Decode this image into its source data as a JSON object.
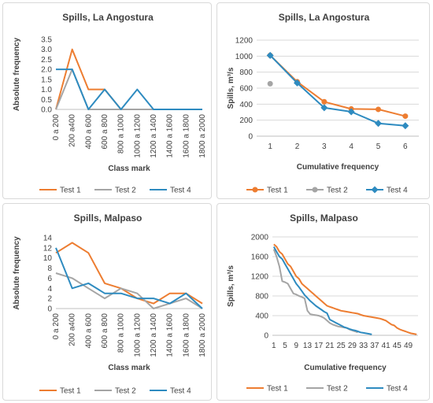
{
  "colors": {
    "test1": "#ED7D31",
    "test2": "#A5A5A5",
    "test4": "#2E8BC0",
    "grid": "#D9D9D9",
    "axis": "#BFBFBF",
    "text": "#404040"
  },
  "chart_data": [
    {
      "type": "line",
      "title": "Spills, La Angostura",
      "xlabel": "Class mark",
      "ylabel": "Absolute frequency",
      "categories": [
        "0 a 200",
        "200 a400",
        "400 a 600",
        "600 a 800",
        "800 a 1000",
        "1000 a 1200",
        "1200 a 1400",
        "1400 a 1600",
        "1600 a 1800",
        "1800 a 2000"
      ],
      "ylim": [
        0,
        3.5
      ],
      "yticks": [
        "0.0",
        "0.5",
        "1.0",
        "1.5",
        "2.0",
        "2.5",
        "3.0",
        "3.5"
      ],
      "grid": false,
      "legend": "bottom",
      "series": [
        {
          "name": "Test 1",
          "color": "#ED7D31",
          "marker": "none",
          "values": [
            0,
            3,
            1,
            1,
            0,
            0,
            0,
            0,
            0,
            0
          ]
        },
        {
          "name": "Test 2",
          "color": "#A5A5A5",
          "marker": "none",
          "values": [
            0,
            2,
            0,
            0,
            0,
            0,
            0,
            0,
            0,
            0
          ]
        },
        {
          "name": "Test 4",
          "color": "#2E8BC0",
          "marker": "none",
          "values": [
            2,
            2,
            0,
            1,
            0,
            1,
            0,
            0,
            0,
            0
          ]
        }
      ]
    },
    {
      "type": "line",
      "title": "Spills, La Angostura",
      "xlabel": "Cumulative frequency",
      "ylabel": "Spills, m³/s",
      "x": [
        1,
        2,
        3,
        4,
        5,
        6
      ],
      "xticks": [
        "1",
        "2",
        "3",
        "4",
        "5",
        "6"
      ],
      "xlim": [
        0.5,
        6.5
      ],
      "ylim": [
        0,
        1200
      ],
      "yticks": [
        "0",
        "200",
        "400",
        "600",
        "800",
        "1000",
        "1200"
      ],
      "grid": true,
      "legend": "bottom",
      "series": [
        {
          "name": "Test 1",
          "color": "#ED7D31",
          "marker": "circle",
          "x": [
            1,
            2,
            3,
            4,
            5,
            6
          ],
          "y": [
            1010,
            680,
            430,
            340,
            335,
            250
          ]
        },
        {
          "name": "Test 2",
          "color": "#A5A5A5",
          "marker": "circle",
          "x": [
            1
          ],
          "y": [
            655
          ]
        },
        {
          "name": "Test 4",
          "color": "#2E8BC0",
          "marker": "diamond",
          "x": [
            1,
            2,
            3,
            4,
            5,
            6
          ],
          "y": [
            1010,
            665,
            355,
            305,
            160,
            130
          ]
        }
      ]
    },
    {
      "type": "line",
      "title": "Spills, Malpaso",
      "xlabel": "Class mark",
      "ylabel": "Absolute frequency",
      "categories": [
        "0 a 200",
        "200 a400",
        "400 a 600",
        "600 a 800",
        "800 a 1000",
        "1000 a 1200",
        "1200 a 1400",
        "1400 a 1600",
        "1600 a 1800",
        "1800 a 2000"
      ],
      "ylim": [
        0,
        14
      ],
      "yticks": [
        "0",
        "2",
        "4",
        "6",
        "8",
        "10",
        "12",
        "14"
      ],
      "grid": false,
      "legend": "bottom",
      "series": [
        {
          "name": "Test 1",
          "color": "#ED7D31",
          "marker": "none",
          "values": [
            11,
            13,
            11,
            5,
            4,
            2,
            1,
            3,
            3,
            1
          ]
        },
        {
          "name": "Test 2",
          "color": "#A5A5A5",
          "marker": "none",
          "values": [
            7,
            6,
            4,
            2,
            4,
            3,
            0,
            1,
            2,
            0
          ]
        },
        {
          "name": "Test 4",
          "color": "#2E8BC0",
          "marker": "none",
          "values": [
            12,
            4,
            5,
            3,
            3,
            2,
            2,
            1,
            3,
            0
          ]
        }
      ]
    },
    {
      "type": "line",
      "title": "Spills, Malpaso",
      "xlabel": "Cumulative frequency",
      "ylabel": "Spills, m³/s",
      "xlim": [
        0.5,
        52.5
      ],
      "xticks": [
        "1",
        "5",
        "9",
        "13",
        "17",
        "21",
        "25",
        "29",
        "33",
        "37",
        "41",
        "45",
        "49"
      ],
      "xtick_positions": [
        1,
        5,
        9,
        13,
        17,
        21,
        25,
        29,
        33,
        37,
        41,
        45,
        49
      ],
      "ylim": [
        0,
        2000
      ],
      "yticks": [
        "0",
        "400",
        "800",
        "1200",
        "1600",
        "2000"
      ],
      "grid": true,
      "legend": "bottom",
      "series": [
        {
          "name": "Test 1",
          "color": "#ED7D31",
          "marker": "none",
          "x": [
            1,
            2,
            3,
            4,
            5,
            6,
            7,
            8,
            9,
            10,
            11,
            12,
            13,
            14,
            15,
            16,
            17,
            18,
            19,
            20,
            21,
            22,
            23,
            24,
            25,
            26,
            27,
            28,
            29,
            30,
            31,
            32,
            33,
            34,
            35,
            36,
            37,
            38,
            39,
            40,
            41,
            42,
            43,
            44,
            45,
            46,
            47,
            48,
            49,
            50,
            51,
            52
          ],
          "y": [
            1850,
            1800,
            1700,
            1650,
            1550,
            1450,
            1400,
            1300,
            1200,
            1150,
            1050,
            1000,
            950,
            900,
            850,
            800,
            750,
            700,
            650,
            600,
            580,
            560,
            540,
            520,
            500,
            490,
            480,
            470,
            460,
            450,
            440,
            420,
            400,
            390,
            380,
            370,
            360,
            350,
            340,
            320,
            300,
            260,
            220,
            200,
            150,
            120,
            100,
            80,
            60,
            40,
            30,
            20
          ]
        },
        {
          "name": "Test 2",
          "color": "#A5A5A5",
          "marker": "none",
          "x": [
            1,
            2,
            3,
            4,
            5,
            6,
            7,
            8,
            9,
            10,
            11,
            12,
            13,
            14,
            15,
            16,
            17,
            18,
            19,
            20,
            21,
            22,
            23,
            24,
            25,
            26,
            27,
            28,
            29,
            30,
            31
          ],
          "y": [
            1750,
            1600,
            1400,
            1100,
            1080,
            1050,
            950,
            850,
            830,
            800,
            780,
            750,
            500,
            430,
            420,
            410,
            400,
            380,
            350,
            300,
            250,
            220,
            200,
            180,
            170,
            160,
            150,
            120,
            100,
            80,
            60
          ]
        },
        {
          "name": "Test 4",
          "color": "#2E8BC0",
          "marker": "none",
          "x": [
            1,
            2,
            3,
            4,
            5,
            6,
            7,
            8,
            9,
            10,
            11,
            12,
            13,
            14,
            15,
            16,
            17,
            18,
            19,
            20,
            21,
            22,
            23,
            24,
            25,
            26,
            27,
            28,
            29,
            30,
            31,
            32,
            33,
            34,
            35,
            36
          ],
          "y": [
            1800,
            1700,
            1600,
            1550,
            1450,
            1350,
            1250,
            1150,
            1050,
            980,
            900,
            820,
            760,
            700,
            650,
            600,
            560,
            520,
            480,
            450,
            320,
            290,
            260,
            230,
            200,
            170,
            150,
            130,
            110,
            100,
            80,
            60,
            50,
            40,
            30,
            20
          ]
        }
      ]
    }
  ]
}
